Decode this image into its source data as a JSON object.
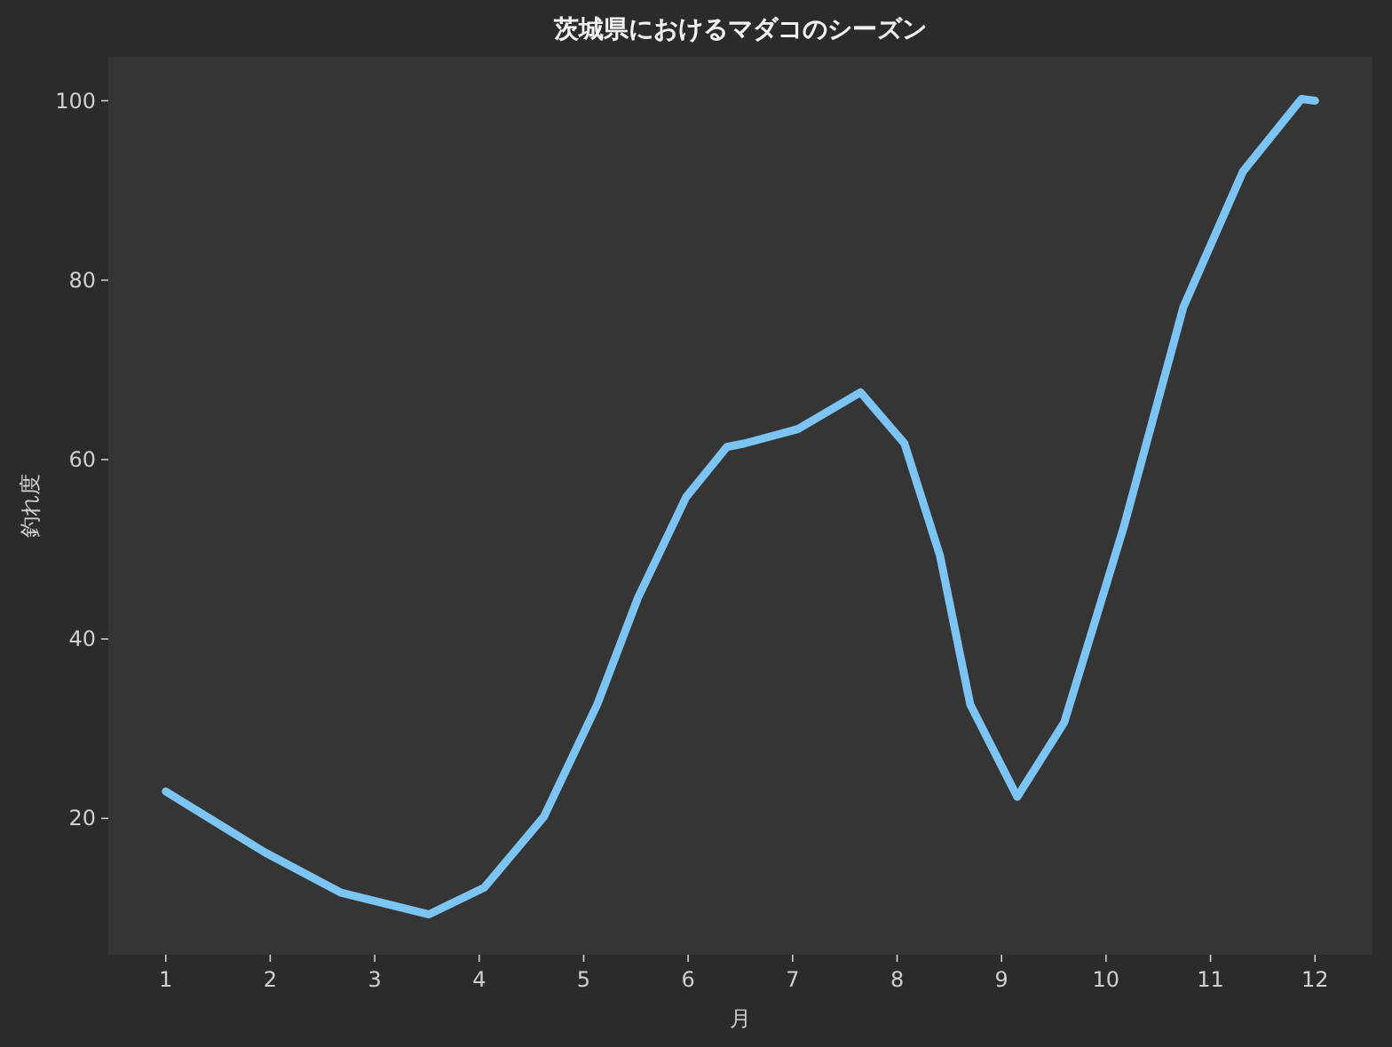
{
  "chart_data": {
    "type": "line",
    "title": "茨城県におけるマダコのシーズン",
    "xlabel": "月",
    "ylabel": "釣れ度",
    "x": [
      1,
      1.95,
      2.68,
      3.52,
      4.05,
      4.62,
      5.13,
      5.52,
      5.98,
      6.37,
      6.54,
      7.05,
      7.65,
      8.07,
      8.41,
      8.7,
      9.15,
      9.6,
      10.17,
      10.74,
      11.31,
      11.87,
      12
    ],
    "series": [
      {
        "color": "#7cc4f4",
        "values": [
          23,
          16.2,
          11.7,
          9.3,
          12.3,
          20.2,
          32.7,
          44.6,
          55.8,
          61.4,
          61.8,
          63.4,
          67.5,
          61.8,
          49.3,
          32.7,
          22.4,
          30.7,
          52.5,
          77,
          92.1,
          100.2,
          100
        ]
      }
    ],
    "xlim": [
      0.45,
      12.55
    ],
    "xticks": [
      1,
      2,
      3,
      4,
      5,
      6,
      7,
      8,
      9,
      10,
      11,
      12
    ],
    "ylim": [
      4.8,
      104.9
    ],
    "yticks": [
      20,
      40,
      60,
      80,
      100
    ]
  }
}
